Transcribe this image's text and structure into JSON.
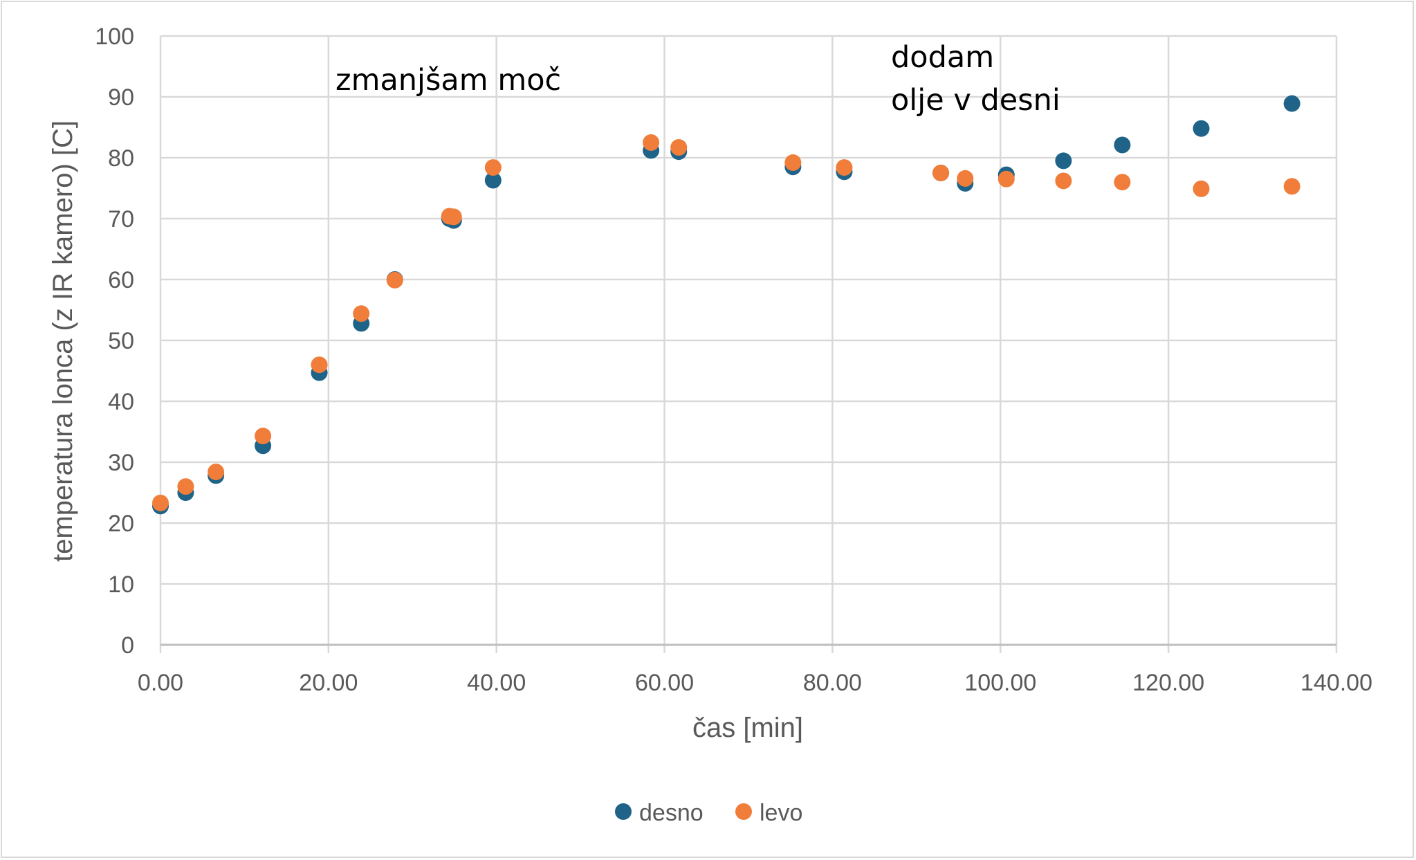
{
  "chart_data": {
    "type": "scatter",
    "title": "",
    "xlabel": "čas [min]",
    "ylabel": "temperatura lonca (z IR kamero) [C]",
    "xlim": [
      0,
      140
    ],
    "ylim": [
      0,
      100
    ],
    "x_ticks": [
      "0.00",
      "20.00",
      "40.00",
      "60.00",
      "80.00",
      "100.00",
      "120.00",
      "140.00"
    ],
    "y_ticks": [
      "0",
      "10",
      "20",
      "30",
      "40",
      "50",
      "60",
      "70",
      "80",
      "90",
      "100"
    ],
    "grid": true,
    "legend_position": "bottom",
    "series": [
      {
        "name": "desno",
        "color": "#1f6389",
        "points": [
          [
            0.0,
            22.8
          ],
          [
            3.0,
            25.0
          ],
          [
            6.6,
            27.8
          ],
          [
            12.2,
            32.7
          ],
          [
            18.9,
            44.7
          ],
          [
            23.9,
            52.8
          ],
          [
            27.9,
            60.0
          ],
          [
            34.4,
            70.0
          ],
          [
            34.9,
            69.7
          ],
          [
            39.6,
            76.3
          ],
          [
            58.4,
            81.2
          ],
          [
            61.7,
            81.0
          ],
          [
            75.3,
            78.5
          ],
          [
            81.4,
            77.7
          ],
          [
            92.9,
            77.5
          ],
          [
            95.8,
            75.8
          ],
          [
            100.7,
            77.2
          ],
          [
            107.5,
            79.5
          ],
          [
            114.5,
            82.1
          ],
          [
            123.9,
            84.8
          ],
          [
            134.7,
            88.9
          ]
        ]
      },
      {
        "name": "levo",
        "color": "#f07d3a",
        "points": [
          [
            0.0,
            23.3
          ],
          [
            3.0,
            26.0
          ],
          [
            6.6,
            28.4
          ],
          [
            12.2,
            34.3
          ],
          [
            18.9,
            46.0
          ],
          [
            23.9,
            54.4
          ],
          [
            27.9,
            59.9
          ],
          [
            34.4,
            70.4
          ],
          [
            34.9,
            70.3
          ],
          [
            39.6,
            78.4
          ],
          [
            58.4,
            82.5
          ],
          [
            61.7,
            81.7
          ],
          [
            75.3,
            79.2
          ],
          [
            81.4,
            78.4
          ],
          [
            92.9,
            77.5
          ],
          [
            95.8,
            76.6
          ],
          [
            100.7,
            76.5
          ],
          [
            107.5,
            76.2
          ],
          [
            114.5,
            76.0
          ],
          [
            123.9,
            74.9
          ],
          [
            134.7,
            75.3
          ]
        ]
      }
    ],
    "annotations": [
      {
        "text": "zmanjšam moč"
      },
      {
        "text": "dodam"
      },
      {
        "text": "olje v desni"
      }
    ]
  }
}
